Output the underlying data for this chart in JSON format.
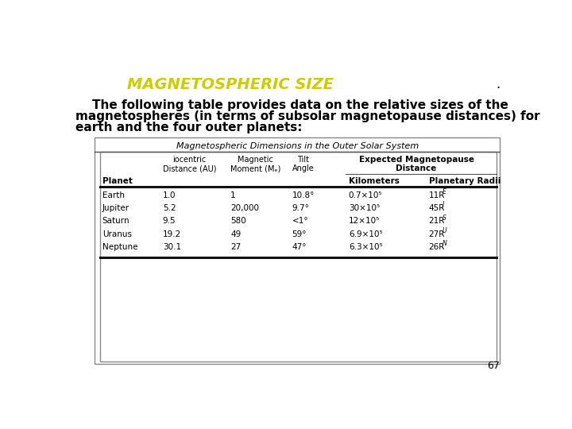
{
  "title": "MAGNETOSPHERIC SIZE",
  "title_color": "#cccc00",
  "dot": ".",
  "para_line1": "    The following table provides data on the relative sizes of the",
  "para_line2": "magnetospheres (in terms of subsolar magnetopause distances) for",
  "para_line3": "earth and the four outer planets:",
  "table_title": "Magnetospheric Dimensions in the Outer Solar System",
  "rows": [
    [
      "Earth",
      "1.0",
      "1",
      "10.8°",
      "0.7×10⁵",
      "11R",
      "E"
    ],
    [
      "Jupiter",
      "5.2",
      "20,000",
      "9.7°",
      "30×10⁵",
      "45R",
      "J"
    ],
    [
      "Saturn",
      "9.5",
      "580",
      "<1°",
      "12×10⁵",
      "21R",
      "S"
    ],
    [
      "Uranus",
      "19.2",
      "49",
      "59°",
      "6.9×10⁵",
      "27R",
      "U"
    ],
    [
      "Neptune",
      "30.1",
      "27",
      "47°",
      "6.3×10⁵",
      "26R",
      "N"
    ]
  ],
  "page_num": "67",
  "bg_color": "#ffffff",
  "text_color": "#000000"
}
